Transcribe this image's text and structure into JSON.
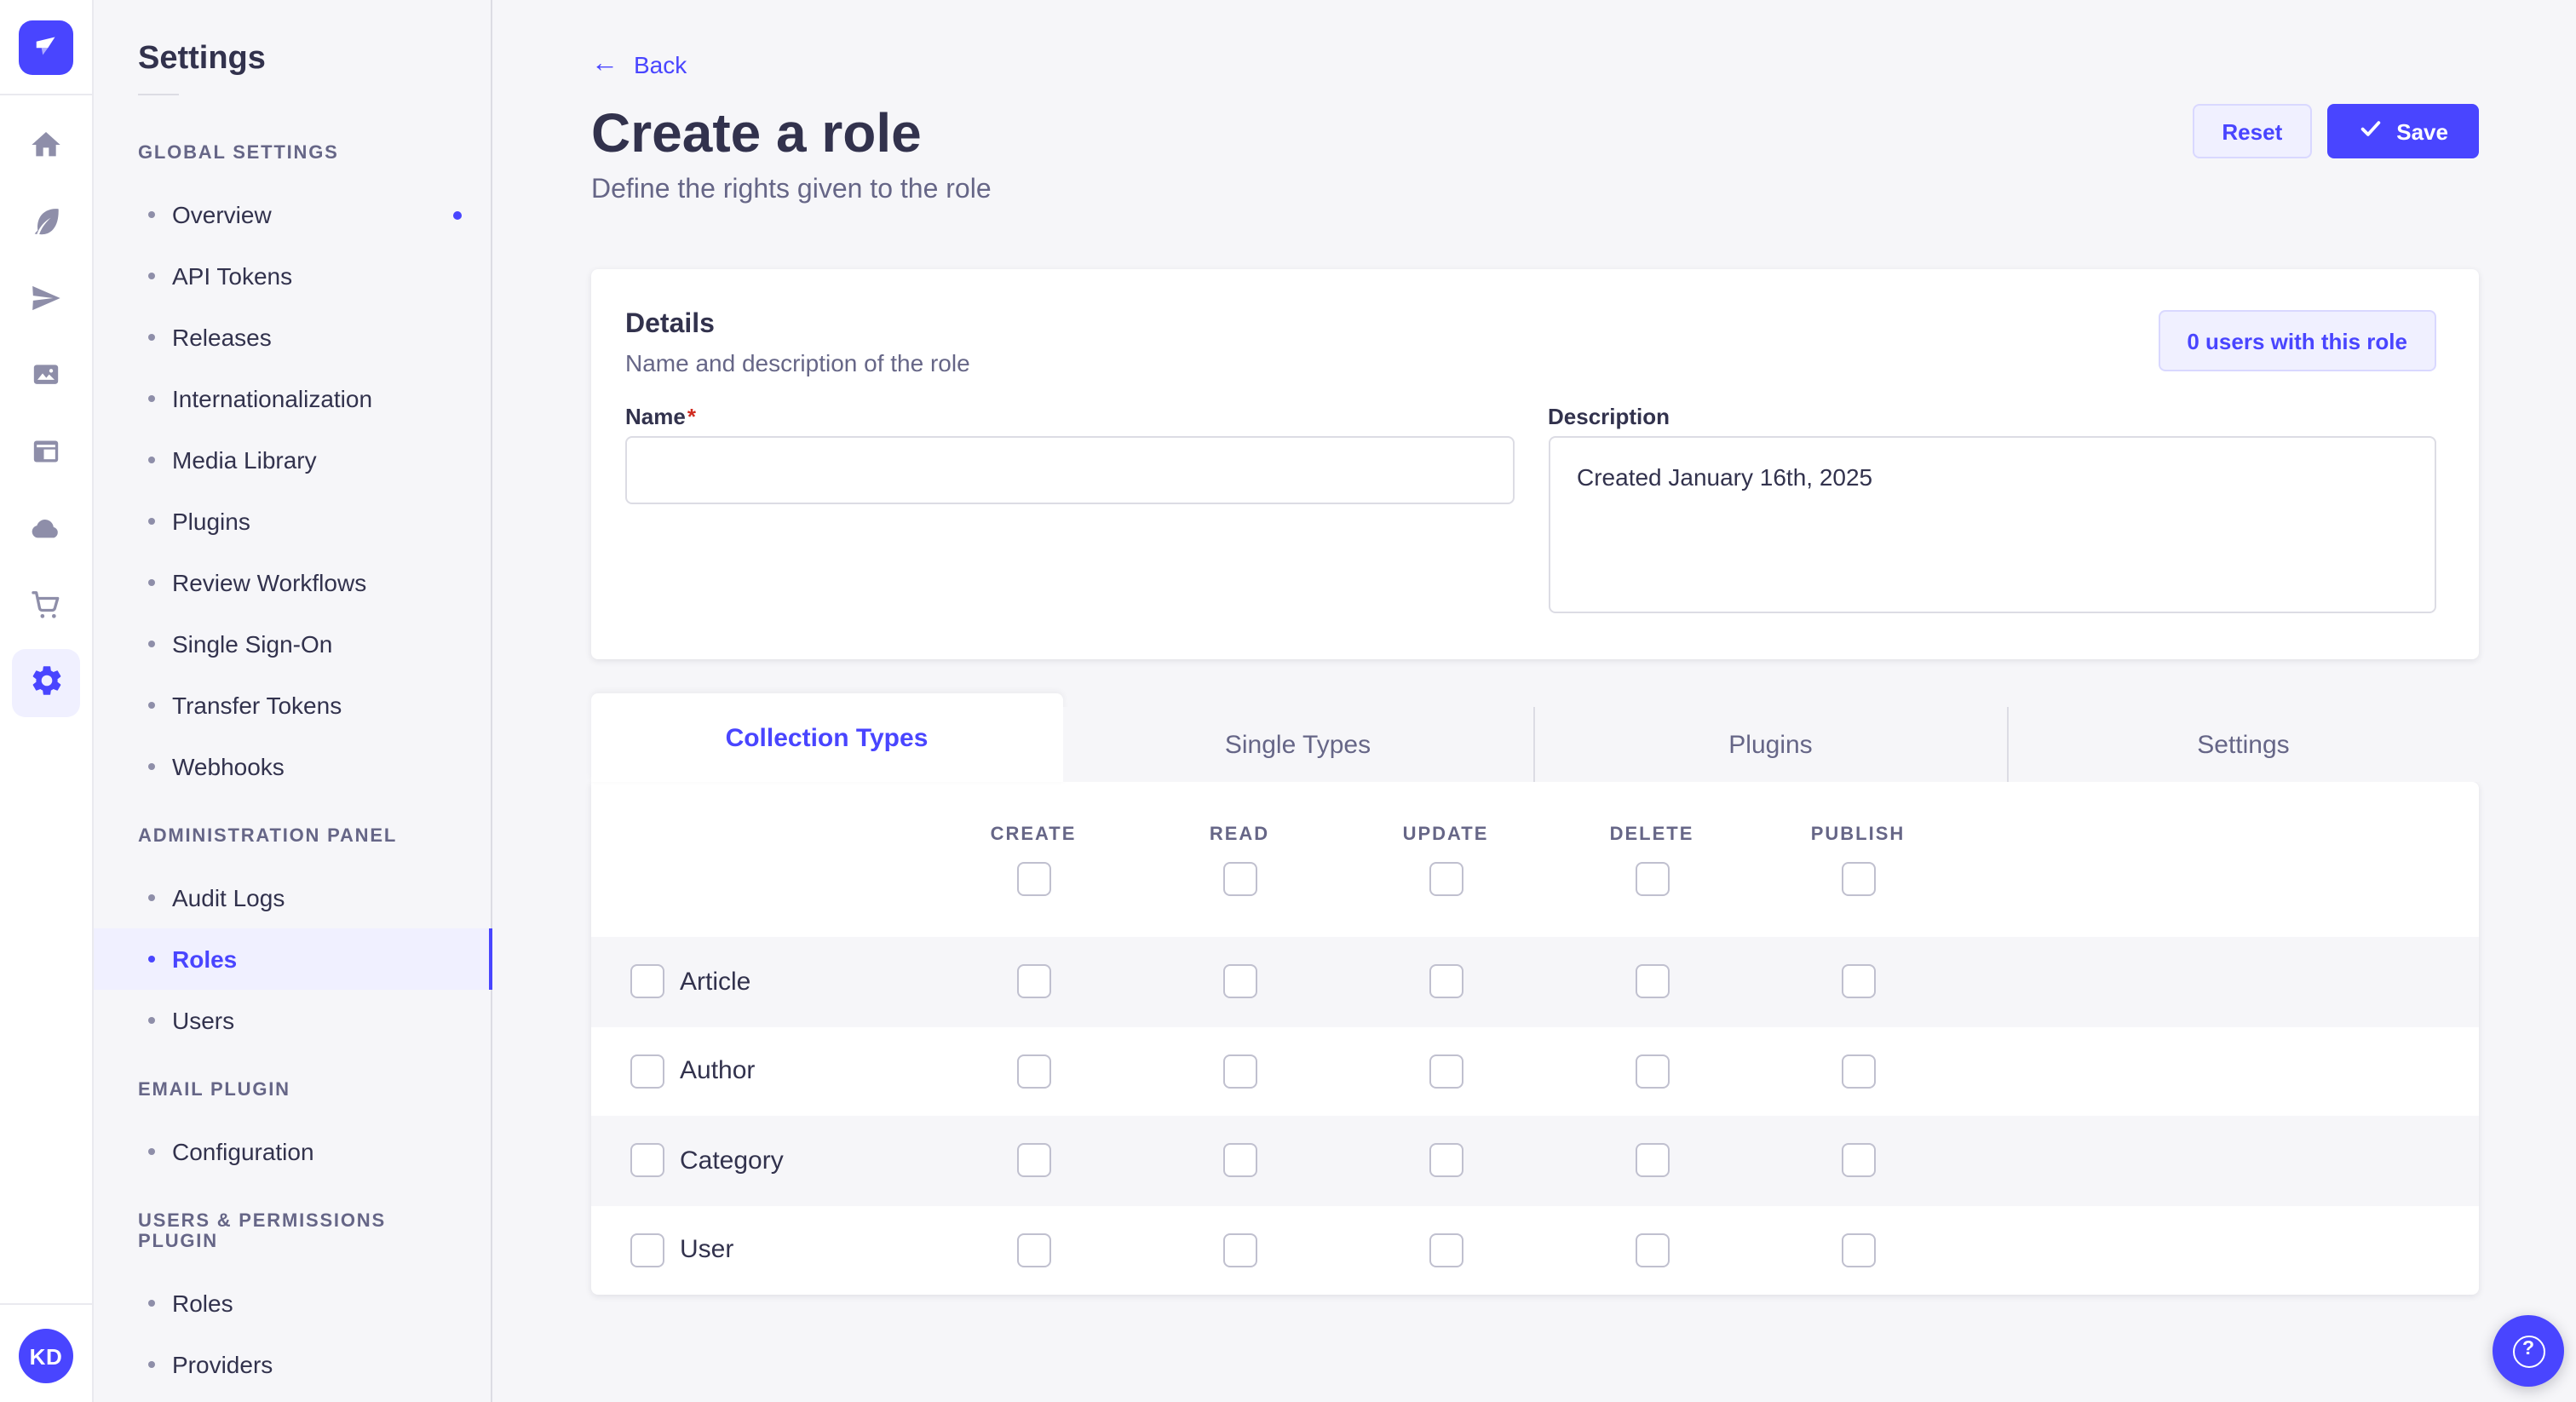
{
  "colors": {
    "primary": "#4945ff",
    "primary_bg": "#f0f0ff",
    "primary_border": "#d9d8ff",
    "text_dark": "#32324d",
    "text_muted": "#666687",
    "icon_gray": "#8e8ea9",
    "border": "#dcdce4",
    "page_bg": "#f6f6f9",
    "card_bg": "#ffffff",
    "checkbox_border": "#c0c0cf",
    "danger": "#d02b20"
  },
  "nav_rail": {
    "logo": "strapi-logo",
    "items": [
      {
        "icon": "home",
        "active": false
      },
      {
        "icon": "feather",
        "active": false
      },
      {
        "icon": "paper-plane",
        "active": false
      },
      {
        "icon": "pictures",
        "active": false
      },
      {
        "icon": "layout",
        "active": false
      },
      {
        "icon": "cloud",
        "active": false
      },
      {
        "icon": "cart",
        "active": false
      },
      {
        "icon": "gear",
        "active": true
      }
    ],
    "avatar_initials": "KD"
  },
  "sidebar": {
    "title": "Settings",
    "sections": [
      {
        "label": "Global Settings",
        "items": [
          {
            "label": "Overview",
            "active": false,
            "dot": true
          },
          {
            "label": "API Tokens",
            "active": false,
            "dot": false
          },
          {
            "label": "Releases",
            "active": false,
            "dot": false
          },
          {
            "label": "Internationalization",
            "active": false,
            "dot": false
          },
          {
            "label": "Media Library",
            "active": false,
            "dot": false
          },
          {
            "label": "Plugins",
            "active": false,
            "dot": false
          },
          {
            "label": "Review Workflows",
            "active": false,
            "dot": false
          },
          {
            "label": "Single Sign-On",
            "active": false,
            "dot": false
          },
          {
            "label": "Transfer Tokens",
            "active": false,
            "dot": false
          },
          {
            "label": "Webhooks",
            "active": false,
            "dot": false
          }
        ]
      },
      {
        "label": "Administration Panel",
        "items": [
          {
            "label": "Audit Logs",
            "active": false,
            "dot": false
          },
          {
            "label": "Roles",
            "active": true,
            "dot": false
          },
          {
            "label": "Users",
            "active": false,
            "dot": false
          }
        ]
      },
      {
        "label": "Email Plugin",
        "items": [
          {
            "label": "Configuration",
            "active": false,
            "dot": false
          }
        ]
      },
      {
        "label": "Users & Permissions plugin",
        "items": [
          {
            "label": "Roles",
            "active": false,
            "dot": false
          },
          {
            "label": "Providers",
            "active": false,
            "dot": false
          }
        ]
      }
    ]
  },
  "header": {
    "back_label": "Back",
    "back_arrow": "←",
    "title": "Create a role",
    "subtitle": "Define the rights given to the role",
    "reset_label": "Reset",
    "save_label": "Save"
  },
  "details": {
    "title": "Details",
    "subtitle": "Name and description of the role",
    "users_button_label": "0 users with this role",
    "name_label": "Name",
    "required_mark": "*",
    "name_value": "",
    "description_label": "Description",
    "description_value": "Created January 16th, 2025"
  },
  "permissions": {
    "tabs": [
      {
        "label": "Collection Types",
        "active": true
      },
      {
        "label": "Single Types",
        "active": false
      },
      {
        "label": "Plugins",
        "active": false
      },
      {
        "label": "Settings",
        "active": false
      }
    ],
    "columns": [
      "Create",
      "Read",
      "Update",
      "Delete",
      "Publish"
    ],
    "rows": [
      {
        "label": "Article",
        "selected": false,
        "permissions": [
          false,
          false,
          false,
          false,
          false
        ]
      },
      {
        "label": "Author",
        "selected": false,
        "permissions": [
          false,
          false,
          false,
          false,
          false
        ]
      },
      {
        "label": "Category",
        "selected": false,
        "permissions": [
          false,
          false,
          false,
          false,
          false
        ]
      },
      {
        "label": "User",
        "selected": false,
        "permissions": [
          false,
          false,
          false,
          false,
          false
        ]
      }
    ]
  },
  "help": {
    "label": "?"
  }
}
